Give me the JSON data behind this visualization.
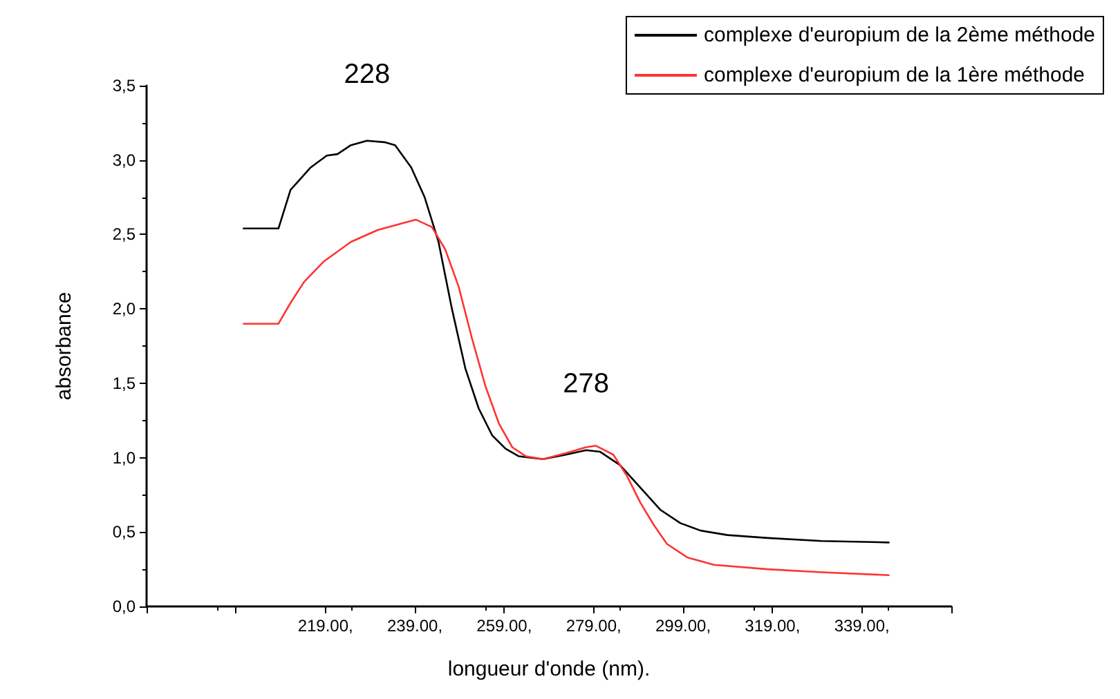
{
  "chart_data": {
    "type": "line",
    "xlabel": "longueur d'onde (nm).",
    "ylabel": "absorbance",
    "xlim": [
      179,
      359
    ],
    "xticks": [
      {
        "value": 179,
        "label": null
      },
      {
        "value": 199,
        "label": null
      },
      {
        "value": 219,
        "label": "219.00,"
      },
      {
        "value": 239,
        "label": "239.00,"
      },
      {
        "value": 259,
        "label": "259.00,"
      },
      {
        "value": 279,
        "label": "279.00,"
      },
      {
        "value": 299,
        "label": "299.00,"
      },
      {
        "value": 319,
        "label": "319.00,"
      },
      {
        "value": 339,
        "label": "339.00,"
      },
      {
        "value": 359,
        "label": null
      }
    ],
    "ylim": [
      0,
      3.5
    ],
    "yticks": [
      {
        "value": 0,
        "label": "0,0"
      },
      {
        "value": 0.5,
        "label": "0,5"
      },
      {
        "value": 1,
        "label": "1,0"
      },
      {
        "value": 1.5,
        "label": "1,5"
      },
      {
        "value": 2,
        "label": "2,0"
      },
      {
        "value": 2.5,
        "label": "2,5"
      },
      {
        "value": 3,
        "label": "3,0"
      },
      {
        "value": 3.5,
        "label": "3,5"
      }
    ],
    "grid": false,
    "legend": "top right",
    "marker": "none",
    "line_style": "solid",
    "annotations": [
      {
        "text": "228",
        "x": 228.3,
        "y": 3.13
      },
      {
        "text": "278",
        "x": 277.3,
        "y": 1.05
      }
    ],
    "series": [
      {
        "name": "complexe d'europium de la 2ème méthode",
        "color": "#000000",
        "x": [
          200.7,
          208.5,
          211.2,
          212.7,
          215.7,
          219.3,
          221.7,
          224.7,
          228.3,
          232.2,
          234.6,
          238.2,
          241.2,
          244.3,
          247.3,
          250.3,
          253.3,
          256.3,
          259.3,
          262.2,
          267.7,
          272.8,
          277.3,
          280.4,
          284.9,
          289.4,
          293.9,
          298.4,
          302.9,
          308.9,
          317.9,
          330.0,
          345.0
        ],
        "values": [
          2.54,
          2.54,
          2.8,
          2.85,
          2.95,
          3.03,
          3.04,
          3.1,
          3.13,
          3.12,
          3.1,
          2.95,
          2.75,
          2.45,
          2.0,
          1.6,
          1.33,
          1.15,
          1.06,
          1.01,
          0.99,
          1.02,
          1.05,
          1.04,
          0.95,
          0.8,
          0.65,
          0.56,
          0.51,
          0.48,
          0.46,
          0.44,
          0.43
        ]
      },
      {
        "name": "complexe d'europium de la 1ère méthode",
        "color": "#ff3333",
        "x": [
          200.7,
          208.5,
          211.2,
          214.2,
          218.7,
          224.7,
          230.7,
          239.2,
          242.8,
          245.8,
          248.8,
          251.8,
          254.8,
          257.8,
          260.8,
          263.8,
          267.7,
          272.8,
          277.3,
          279.5,
          283.4,
          286.4,
          289.4,
          292.4,
          295.4,
          299.9,
          305.9,
          317.9,
          330.0,
          345.0
        ],
        "values": [
          1.9,
          1.9,
          2.04,
          2.18,
          2.32,
          2.45,
          2.53,
          2.6,
          2.55,
          2.4,
          2.15,
          1.8,
          1.48,
          1.23,
          1.07,
          1.01,
          0.99,
          1.03,
          1.07,
          1.08,
          1.02,
          0.88,
          0.7,
          0.55,
          0.42,
          0.33,
          0.28,
          0.25,
          0.23,
          0.21
        ]
      }
    ]
  }
}
